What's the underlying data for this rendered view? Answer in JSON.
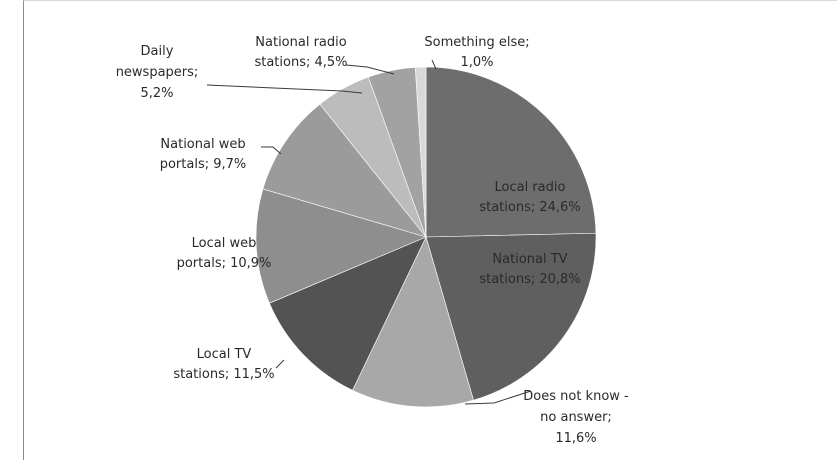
{
  "chart_data": {
    "type": "pie",
    "title": "",
    "start_angle_deg": 90,
    "direction": "clockwise",
    "slices": [
      {
        "label_lines": [
          "Local radio",
          "stations; 24,6%"
        ],
        "category": "Local radio stations",
        "value": 24.6,
        "color": "#6d6d6d"
      },
      {
        "label_lines": [
          "National TV",
          "stations; 20,8%"
        ],
        "category": "National TV stations",
        "value": 20.8,
        "color": "#5f5f5f"
      },
      {
        "label_lines": [
          "Does not know -",
          "no answer;",
          "11,6%"
        ],
        "category": "Does not know - no answer",
        "value": 11.6,
        "color": "#a8a8a8"
      },
      {
        "label_lines": [
          "Local TV",
          "stations; 11,5%"
        ],
        "category": "Local TV stations",
        "value": 11.5,
        "color": "#535353"
      },
      {
        "label_lines": [
          "Local web",
          "portals; 10,9%"
        ],
        "category": "Local web portals",
        "value": 10.9,
        "color": "#8e8e8e"
      },
      {
        "label_lines": [
          "National web",
          "portals; 9,7%"
        ],
        "category": "National web portals",
        "value": 9.7,
        "color": "#9b9b9b"
      },
      {
        "label_lines": [
          "Daily",
          "newspapers;",
          "5,2%"
        ],
        "category": "Daily newspapers",
        "value": 5.2,
        "color": "#bcbcbc"
      },
      {
        "label_lines": [
          "National radio",
          "stations; 4,5%"
        ],
        "category": "National radio stations",
        "value": 4.5,
        "color": "#a2a2a2"
      },
      {
        "label_lines": [
          "Something else;",
          "1,0%"
        ],
        "category": "Something else",
        "value": 1.0,
        "color": "#d8d8d8"
      }
    ]
  }
}
